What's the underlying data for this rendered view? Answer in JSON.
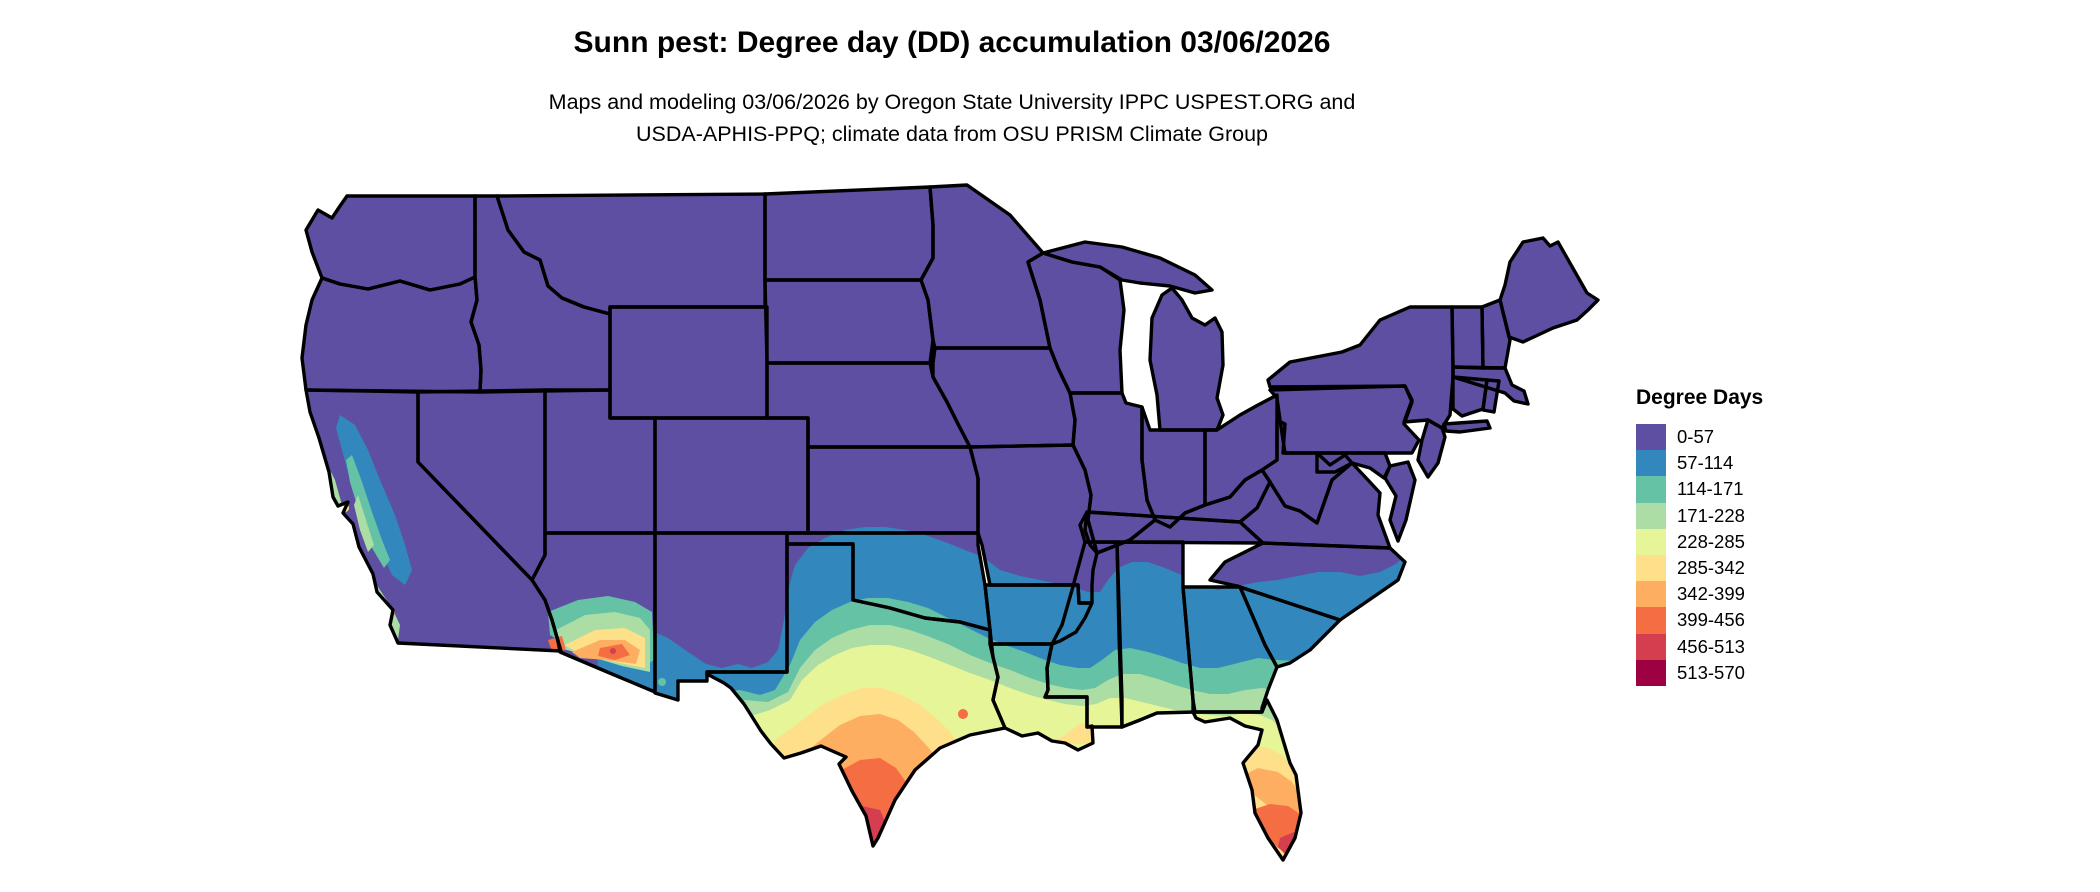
{
  "title": "Sunn pest: Degree day (DD) accumulation 03/06/2026",
  "subtitle_line1": "Maps and modeling 03/06/2026 by Oregon State University IPPC USPEST.ORG and",
  "subtitle_line2": "USDA-APHIS-PPQ; climate data from OSU PRISM Climate Group",
  "legend": {
    "title": "Degree Days",
    "classes": [
      {
        "label": "0-57",
        "color": "#5e4fa2"
      },
      {
        "label": "57-114",
        "color": "#3288bd"
      },
      {
        "label": "114-171",
        "color": "#66c2a5"
      },
      {
        "label": "171-228",
        "color": "#abdda4"
      },
      {
        "label": "228-285",
        "color": "#e6f598"
      },
      {
        "label": "285-342",
        "color": "#fee08b"
      },
      {
        "label": "342-399",
        "color": "#fdae61"
      },
      {
        "label": "399-456",
        "color": "#f46d43"
      },
      {
        "label": "456-513",
        "color": "#d53e4f"
      },
      {
        "label": "513-570",
        "color": "#9e0142"
      }
    ]
  },
  "palette": {
    "purple": "#5e4fa2",
    "blue": "#3288bd",
    "teal": "#66c2a5",
    "green": "#abdda4",
    "paleyellow": "#e6f598",
    "cream": "#fee08b",
    "lightorange": "#fdae61",
    "orange": "#f46d43",
    "red": "#d53e4f",
    "maroon": "#9e0142",
    "border": "#000000",
    "water": "#ffffff"
  },
  "map": {
    "region": "Contiguous United States",
    "kind": "degree-day accumulation choropleth"
  }
}
